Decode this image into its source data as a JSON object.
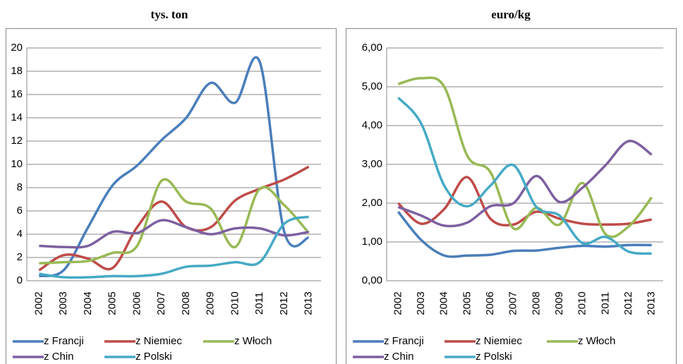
{
  "chart_data": [
    {
      "type": "line",
      "title": "tys. ton",
      "categories": [
        "2002",
        "2003",
        "2004",
        "2005",
        "2006",
        "2007",
        "2008",
        "2009",
        "2010",
        "2011",
        "2012",
        "2013"
      ],
      "ylim": [
        0,
        20
      ],
      "yticks": [
        0,
        2,
        4,
        6,
        8,
        10,
        12,
        14,
        16,
        18,
        20
      ],
      "grid": true,
      "series": [
        {
          "name": "z Francji",
          "color": "#4a7ebb",
          "values": [
            0.4,
            0.9,
            4.6,
            8.2,
            9.9,
            12.1,
            14.0,
            17.0,
            15.3,
            18.8,
            4.2,
            3.7
          ]
        },
        {
          "name": "z Niemiec",
          "color": "#be4b48",
          "values": [
            0.9,
            2.2,
            1.9,
            1.1,
            4.6,
            6.8,
            4.6,
            4.6,
            6.9,
            7.9,
            8.7,
            9.8
          ]
        },
        {
          "name": "z Włoch",
          "color": "#98b954",
          "values": [
            1.5,
            1.6,
            1.7,
            2.4,
            3.0,
            8.6,
            6.8,
            6.2,
            2.9,
            7.9,
            6.5,
            4.1
          ]
        },
        {
          "name": "z Chin",
          "color": "#7d60a0",
          "values": [
            3.0,
            2.9,
            3.0,
            4.2,
            4.1,
            5.2,
            4.6,
            4.0,
            4.5,
            4.5,
            3.9,
            4.2
          ]
        },
        {
          "name": "z Polski",
          "color": "#46aac5",
          "values": [
            0.6,
            0.3,
            0.3,
            0.4,
            0.4,
            0.6,
            1.2,
            1.3,
            1.6,
            1.6,
            4.9,
            5.5
          ]
        }
      ]
    },
    {
      "type": "line",
      "title": "euro/kg",
      "categories": [
        "2002",
        "2003",
        "2004",
        "2005",
        "2006",
        "2007",
        "2008",
        "2009",
        "2010",
        "2011",
        "2012",
        "2013"
      ],
      "ylim": [
        0,
        6
      ],
      "yticks": [
        {
          "value": 0,
          "label": "0,00"
        },
        {
          "value": 1,
          "label": "1,00"
        },
        {
          "value": 2,
          "label": "2,00"
        },
        {
          "value": 3,
          "label": "3,00"
        },
        {
          "value": 4,
          "label": "4,00"
        },
        {
          "value": 5,
          "label": "5,00"
        },
        {
          "value": 6,
          "label": "6,00"
        }
      ],
      "grid": true,
      "series": [
        {
          "name": "z Francji",
          "color": "#4a7ebb",
          "values": [
            1.78,
            1.05,
            0.65,
            0.65,
            0.67,
            0.77,
            0.78,
            0.85,
            0.9,
            0.88,
            0.92,
            0.92
          ]
        },
        {
          "name": "z Niemiec",
          "color": "#be4b48",
          "values": [
            2.0,
            1.47,
            1.85,
            2.67,
            1.6,
            1.45,
            1.78,
            1.6,
            1.47,
            1.45,
            1.47,
            1.58
          ]
        },
        {
          "name": "z Włoch",
          "color": "#98b954",
          "values": [
            5.07,
            5.22,
            5.0,
            3.22,
            2.8,
            1.35,
            1.88,
            1.45,
            2.52,
            1.2,
            1.4,
            2.15
          ]
        },
        {
          "name": "z Chin",
          "color": "#7d60a0",
          "values": [
            1.9,
            1.68,
            1.42,
            1.5,
            1.92,
            2.0,
            2.7,
            2.03,
            2.4,
            2.98,
            3.6,
            3.25
          ]
        },
        {
          "name": "z Polski",
          "color": "#46aac5",
          "values": [
            4.72,
            4.05,
            2.45,
            1.92,
            2.45,
            2.98,
            1.9,
            1.68,
            0.97,
            1.13,
            0.75,
            0.7
          ]
        }
      ]
    }
  ]
}
